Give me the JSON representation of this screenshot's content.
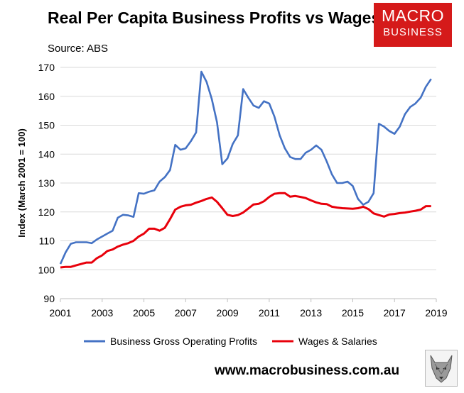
{
  "header": {
    "title": "Real Per Capita Business Profits vs Wages",
    "source": "Source: ABS",
    "logo_line1": "MACRO",
    "logo_line2": "BUSINESS"
  },
  "footer": {
    "url": "www.macrobusiness.com.au"
  },
  "colors": {
    "profits": "#4472c4",
    "wages": "#e8000b",
    "logo_bg": "#d51a1a",
    "grid": "#d9d9d9"
  },
  "chart_data": {
    "type": "line",
    "title": "Real Per Capita Business Profits vs Wages",
    "xlabel": "",
    "ylabel": "Index (March 2001 = 100)",
    "xlim": [
      2001,
      2019
    ],
    "ylim": [
      90,
      170
    ],
    "x_ticks": [
      "2001",
      "2003",
      "2005",
      "2007",
      "2009",
      "2011",
      "2013",
      "2015",
      "2017",
      "2019"
    ],
    "y_ticks": [
      "90",
      "100",
      "110",
      "120",
      "130",
      "140",
      "150",
      "160",
      "170"
    ],
    "grid": "horizontal",
    "legend_position": "bottom",
    "x": [
      2001.0,
      2001.25,
      2001.5,
      2001.75,
      2002.0,
      2002.25,
      2002.5,
      2002.75,
      2003.0,
      2003.25,
      2003.5,
      2003.75,
      2004.0,
      2004.25,
      2004.5,
      2004.75,
      2005.0,
      2005.25,
      2005.5,
      2005.75,
      2006.0,
      2006.25,
      2006.5,
      2006.75,
      2007.0,
      2007.25,
      2007.5,
      2007.75,
      2008.0,
      2008.25,
      2008.5,
      2008.75,
      2009.0,
      2009.25,
      2009.5,
      2009.75,
      2010.0,
      2010.25,
      2010.5,
      2010.75,
      2011.0,
      2011.25,
      2011.5,
      2011.75,
      2012.0,
      2012.25,
      2012.5,
      2012.75,
      2013.0,
      2013.25,
      2013.5,
      2013.75,
      2014.0,
      2014.25,
      2014.5,
      2014.75,
      2015.0,
      2015.25,
      2015.5,
      2015.75,
      2016.0,
      2016.25,
      2016.5,
      2016.75,
      2017.0,
      2017.25,
      2017.5,
      2017.75,
      2018.0,
      2018.25,
      2018.5,
      2018.75
    ],
    "series": [
      {
        "name": "Business Gross Operating Profits",
        "values": [
          102,
          106,
          109,
          109.5,
          109.5,
          109.5,
          109.2,
          110.5,
          111.5,
          112.5,
          113.5,
          118,
          119,
          118.8,
          118.3,
          126.5,
          126.3,
          127,
          127.5,
          130.5,
          132,
          134.5,
          143.2,
          141.5,
          142,
          144.5,
          147.5,
          168.5,
          165,
          159,
          151,
          136.5,
          138.5,
          143.5,
          146.5,
          162.5,
          159.5,
          156.8,
          156,
          158.3,
          157.5,
          153,
          146.5,
          142,
          139,
          138.3,
          138.3,
          140.5,
          141.5,
          143,
          141.5,
          137.5,
          133,
          130,
          130,
          130.5,
          129,
          124.5,
          122.5,
          123.5,
          126.5,
          150.5,
          149.5,
          148,
          147,
          149.5,
          153.8,
          156.3,
          157.5,
          159.5,
          163.3,
          166
        ]
      },
      {
        "name": "Wages & Salaries",
        "values": [
          100.8,
          101,
          101,
          101.5,
          102,
          102.5,
          102.5,
          104,
          105,
          106.5,
          107,
          108,
          108.7,
          109.2,
          110,
          111.5,
          112.5,
          114.2,
          114.2,
          113.5,
          114.5,
          117.5,
          120.8,
          121.8,
          122.3,
          122.5,
          123.2,
          123.8,
          124.5,
          125,
          123.5,
          121.3,
          119,
          118.6,
          118.9,
          119.8,
          121.2,
          122.6,
          122.8,
          123.7,
          125.2,
          126.3,
          126.5,
          126.5,
          125.3,
          125.5,
          125.2,
          124.8,
          124,
          123.3,
          122.8,
          122.7,
          121.8,
          121.5,
          121.3,
          121.2,
          121.1,
          121.3,
          121.8,
          121,
          119.5,
          118.9,
          118.4,
          119.1,
          119.3,
          119.6,
          119.8,
          120.1,
          120.4,
          120.8,
          122,
          122
        ]
      }
    ]
  }
}
